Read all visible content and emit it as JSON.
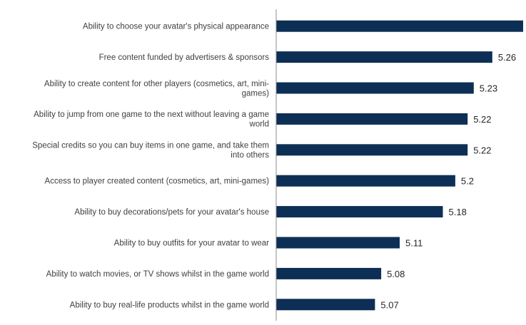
{
  "chart_data": {
    "type": "bar",
    "orientation": "horizontal",
    "title": "",
    "xlabel": "",
    "ylabel": "",
    "bar_color": "#0d2f55",
    "axis_color": "#8c8c8c",
    "text_color": "#404040",
    "xlim": [
      4.91,
      5.31
    ],
    "categories": [
      "Ability to choose your avatar's physical appearance",
      "Free content funded by advertisers & sponsors",
      "Ability to create content for other players (cosmetics, art, mini-games)",
      "Ability to jump from one game to the next without leaving a game world",
      "Special credits so you can buy items in one game, and take them into others",
      "Access to player created content (cosmetics, art, mini-games)",
      "Ability to buy decorations/pets for your avatar's house",
      "Ability to buy outfits for your avatar to wear",
      "Ability to watch movies, or TV shows whilst in the game world",
      "Ability to buy real-life products whilst in the game world"
    ],
    "category_lines": [
      [
        "Ability to choose your avatar's physical appearance"
      ],
      [
        "Free content funded by advertisers & sponsors"
      ],
      [
        "Ability to create content for other players (cosmetics, art, mini-",
        "games)"
      ],
      [
        "Ability to jump from one game to the next without leaving a game",
        "world"
      ],
      [
        "Special credits so you can buy items in one game, and take them",
        "into others"
      ],
      [
        "Access to player created content (cosmetics, art, mini-games)"
      ],
      [
        "Ability to buy decorations/pets for your avatar's house"
      ],
      [
        "Ability to buy outfits for your avatar to wear"
      ],
      [
        "Ability to watch movies, or TV shows whilst in the game world"
      ],
      [
        "Ability to buy real-life products whilst in the game world"
      ]
    ],
    "values": [
      5.31,
      5.26,
      5.23,
      5.22,
      5.22,
      5.2,
      5.18,
      5.11,
      5.08,
      5.07
    ],
    "value_labels": [
      "",
      "5.26",
      "5.23",
      "5.22",
      "5.22",
      "5.2",
      "5.18",
      "5.11",
      "5.08",
      "5.07"
    ]
  }
}
